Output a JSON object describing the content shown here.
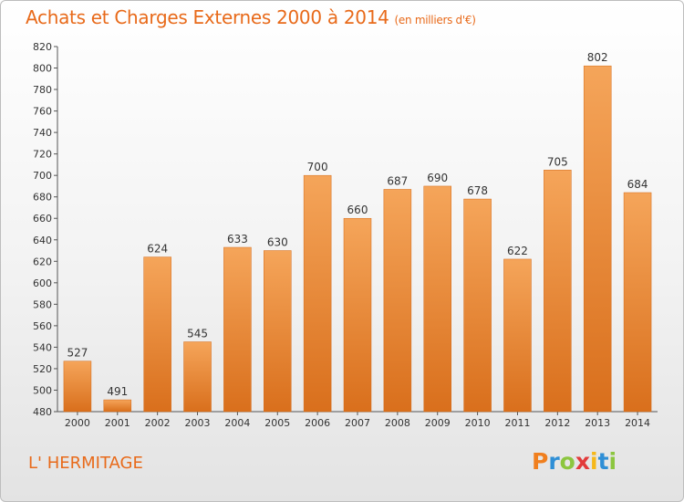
{
  "header": {
    "title": "Achats et Charges Externes 2000 à 2014",
    "subtitle": "(en milliers d'€)"
  },
  "footer": {
    "location": "L' HERMITAGE",
    "logo": "Proxiti",
    "logo_colors": [
      "#f07f1e",
      "#2f8fd6",
      "#8cc63f",
      "#e23b3b",
      "#f6b81a",
      "#2f8fd6",
      "#8cc63f"
    ]
  },
  "colors": {
    "bar_top": "#f5a55a",
    "bar_bottom": "#d96f1c",
    "accent": "#e86a1a"
  },
  "chart_data": {
    "type": "bar",
    "title": "Achats et Charges Externes 2000 à 2014",
    "subtitle": "(en milliers d'€)",
    "xlabel": "",
    "ylabel": "",
    "categories": [
      "2000",
      "2001",
      "2002",
      "2003",
      "2004",
      "2005",
      "2006",
      "2007",
      "2008",
      "2009",
      "2010",
      "2011",
      "2012",
      "2013",
      "2014"
    ],
    "values": [
      527,
      491,
      624,
      545,
      633,
      630,
      700,
      660,
      687,
      690,
      678,
      622,
      705,
      802,
      684
    ],
    "ylim": [
      480,
      820
    ],
    "yticks": [
      480,
      500,
      520,
      540,
      560,
      580,
      600,
      620,
      640,
      660,
      680,
      700,
      720,
      740,
      760,
      780,
      800,
      820
    ],
    "grid": false,
    "legend": "none"
  }
}
